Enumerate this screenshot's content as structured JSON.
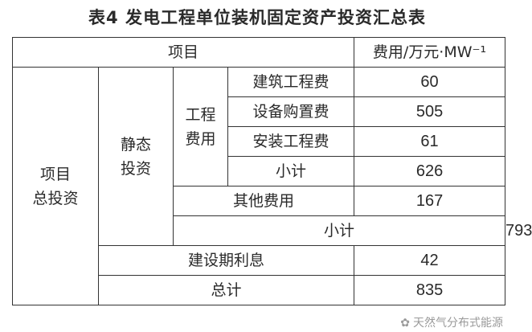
{
  "title": "表4 发电工程单位装机固定资产投资汇总表",
  "header": {
    "item": "项目",
    "cost": "费用/万元·MW⁻¹"
  },
  "groups": {
    "total_investment": "项目\n总投资",
    "static_investment": "静态\n投资",
    "engineering_cost": "工程\n费用"
  },
  "rows": [
    {
      "label": "建筑工程费",
      "value": "60"
    },
    {
      "label": "设备购置费",
      "value": "505"
    },
    {
      "label": "安装工程费",
      "value": "61"
    },
    {
      "label": "小计",
      "value": "626"
    },
    {
      "label": "其他费用",
      "value": "167"
    },
    {
      "label": "小计",
      "value": "793"
    },
    {
      "label": "建设期利息",
      "value": "42"
    },
    {
      "label": "总计",
      "value": "835"
    }
  ],
  "watermark": "天然气分布式能源"
}
